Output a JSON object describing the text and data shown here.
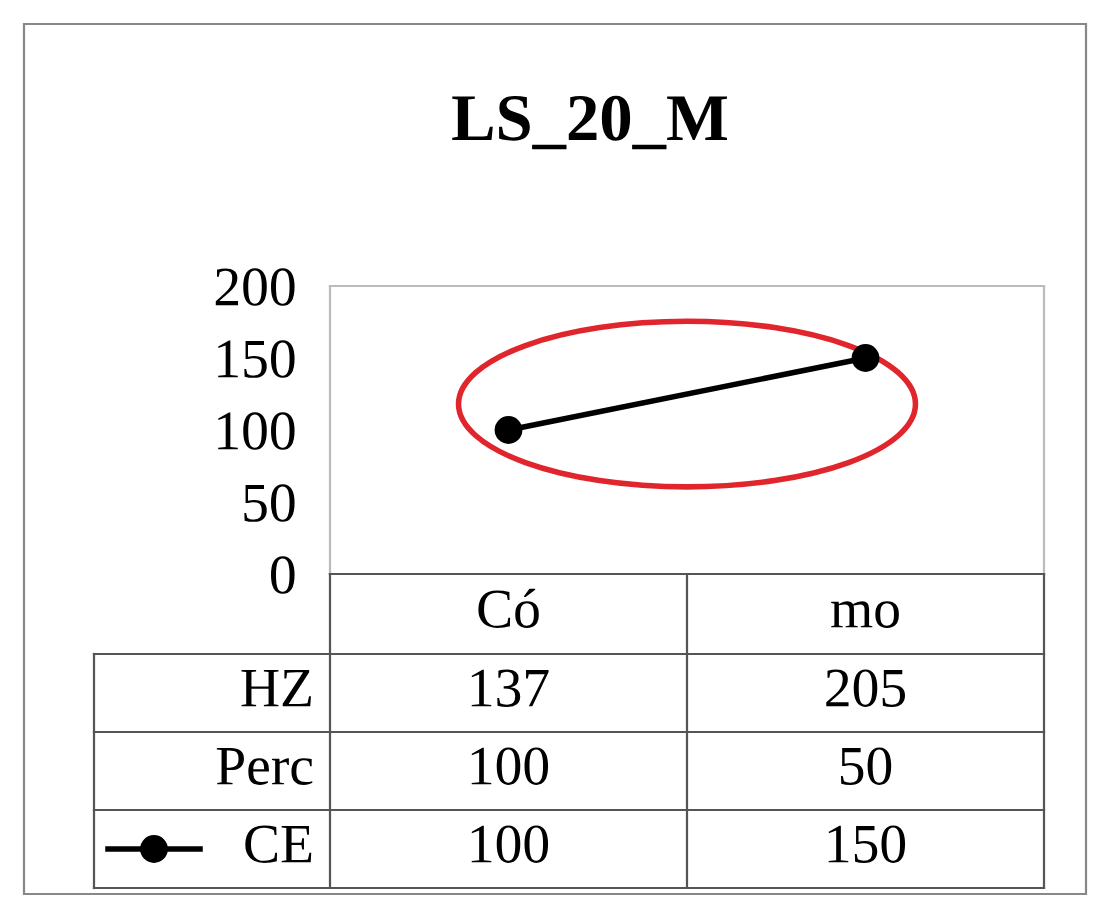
{
  "chart_data": {
    "type": "line",
    "title": "LS_20_M",
    "categories": [
      "Có",
      "mo"
    ],
    "series": [
      {
        "name": "CE",
        "color": "#000000",
        "values": [
          100,
          150
        ]
      }
    ],
    "annotations": [
      "HZ",
      "137",
      "205",
      "Perc",
      "100",
      "50"
    ],
    "ylim": [
      0,
      200
    ],
    "yticks": [
      0,
      50,
      100,
      150,
      200
    ],
    "marker": "circle",
    "data_labels": true,
    "grid": false,
    "legend": "bottom left"
  }
}
